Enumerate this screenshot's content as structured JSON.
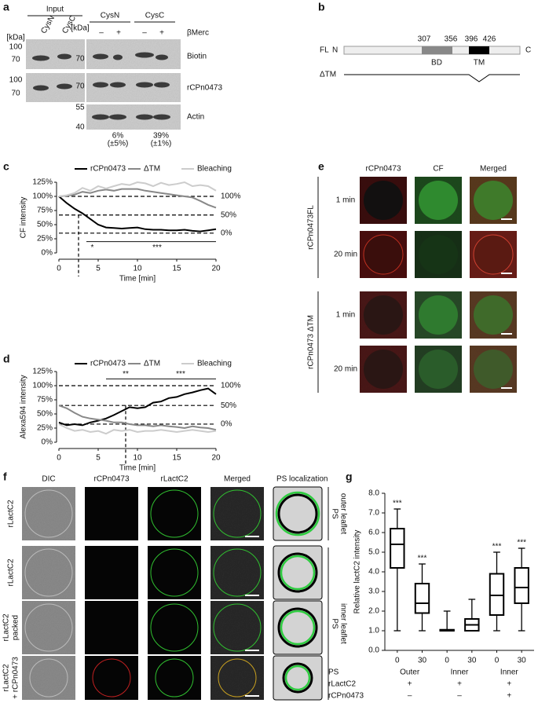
{
  "panel_labels": [
    "a",
    "b",
    "c",
    "d",
    "e",
    "f",
    "g"
  ],
  "blot": {
    "input_label": "Input",
    "lanes_input": [
      "CysN",
      "CysC"
    ],
    "groups": [
      "CysN",
      "CysC"
    ],
    "treatment": "βMerc",
    "signs": [
      "–",
      "+",
      "–",
      "+"
    ],
    "kda": [
      "[kDa]",
      "[kDa]"
    ],
    "markers_left": [
      100,
      70,
      100,
      70
    ],
    "markers_mid": [
      70,
      70,
      55,
      40
    ],
    "rows": [
      "Biotin",
      "rCPn0473",
      "Actin"
    ],
    "quantification": [
      [
        "6%",
        "(±5%)"
      ],
      [
        "39%",
        "(±1%)"
      ]
    ]
  },
  "domain_diagram": {
    "fl": "FL",
    "n": "N",
    "c": "C",
    "positions": [
      307,
      356,
      396,
      426
    ],
    "domains": [
      "BD",
      "TM"
    ],
    "dtm": "ΔTM"
  },
  "chart_data": [
    {
      "type": "line",
      "ylabel": "CF intensity",
      "xlabel": "Time [min]",
      "x": [
        0,
        1,
        2,
        3,
        4,
        5,
        6,
        7,
        8,
        9,
        10,
        11,
        12,
        13,
        14,
        15,
        16,
        17,
        18,
        19,
        20
      ],
      "series": [
        {
          "name": "rCPn0473",
          "color": "#000000",
          "values": [
            100,
            88,
            78,
            70,
            60,
            50,
            45,
            44,
            43,
            44,
            45,
            42,
            41,
            41,
            40,
            40,
            41,
            39,
            38,
            40,
            42
          ]
        },
        {
          "name": "ΔTM",
          "color": "#888888",
          "values": [
            100,
            101,
            103,
            108,
            106,
            110,
            112,
            110,
            113,
            113,
            113,
            110,
            108,
            106,
            104,
            102,
            100,
            98,
            92,
            85,
            80
          ]
        },
        {
          "name": "Bleaching",
          "color": "#cccccc",
          "values": [
            100,
            102,
            106,
            115,
            110,
            118,
            114,
            118,
            122,
            120,
            125,
            123,
            118,
            124,
            120,
            122,
            125,
            118,
            120,
            118,
            110
          ]
        }
      ],
      "xlim": [
        0,
        20
      ],
      "xticks": [
        0,
        5,
        10,
        15,
        20
      ],
      "ylim": [
        0,
        125
      ],
      "yticks": [
        {
          "value": 0,
          "label": "0%"
        },
        {
          "value": 25,
          "label": "25%"
        },
        {
          "value": 50,
          "label": "50%"
        },
        {
          "value": 75,
          "label": "75%"
        },
        {
          "value": 100,
          "label": "100%"
        },
        {
          "value": 125,
          "label": "125%"
        }
      ],
      "reference_lines": [
        {
          "value": 100,
          "label": "100%"
        },
        {
          "value": 67,
          "label": "50%"
        },
        {
          "value": 35,
          "label": "0%"
        }
      ],
      "marker_x": 2.5,
      "significance": [
        {
          "label": "*",
          "x": [
            3.5,
            5
          ],
          "y": 20
        },
        {
          "label": "***",
          "x": [
            5,
            20
          ],
          "y": 20
        }
      ]
    },
    {
      "type": "line",
      "ylabel": "Alexa594 intensity",
      "xlabel": "Time [min]",
      "x": [
        0,
        1,
        2,
        3,
        4,
        5,
        6,
        7,
        8,
        9,
        10,
        11,
        12,
        13,
        14,
        15,
        16,
        17,
        18,
        19,
        20
      ],
      "series": [
        {
          "name": "rCPn0473",
          "color": "#000000",
          "values": [
            35,
            30,
            32,
            30,
            35,
            38,
            42,
            48,
            55,
            62,
            60,
            62,
            70,
            72,
            78,
            80,
            85,
            88,
            92,
            95,
            85
          ]
        },
        {
          "name": "ΔTM",
          "color": "#888888",
          "values": [
            65,
            60,
            52,
            45,
            42,
            40,
            38,
            35,
            35,
            32,
            30,
            30,
            28,
            30,
            28,
            27,
            25,
            28,
            26,
            25,
            22
          ]
        },
        {
          "name": "Bleaching",
          "color": "#cccccc",
          "values": [
            32,
            25,
            20,
            22,
            18,
            20,
            15,
            22,
            20,
            22,
            18,
            20,
            20,
            22,
            20,
            18,
            20,
            22,
            20,
            18,
            20
          ]
        }
      ],
      "xlim": [
        0,
        20
      ],
      "xticks": [
        0,
        5,
        10,
        15,
        20
      ],
      "ylim": [
        0,
        125
      ],
      "yticks": [
        {
          "value": 0,
          "label": "0%"
        },
        {
          "value": 25,
          "label": "25%"
        },
        {
          "value": 50,
          "label": "50%"
        },
        {
          "value": 75,
          "label": "75%"
        },
        {
          "value": 100,
          "label": "100%"
        },
        {
          "value": 125,
          "label": "125%"
        }
      ],
      "reference_lines": [
        {
          "value": 100,
          "label": "100%"
        },
        {
          "value": 65,
          "label": "50%"
        },
        {
          "value": 32,
          "label": "0%"
        }
      ],
      "marker_x": 8.5,
      "significance": [
        {
          "label": "**",
          "x": [
            6,
            11
          ],
          "y": 112
        },
        {
          "label": "***",
          "x": [
            11,
            20
          ],
          "y": 112
        }
      ]
    },
    {
      "type": "box",
      "ylabel": "Relative lactC2 intensity",
      "categories": [
        "0",
        "30",
        "0",
        "30",
        "0",
        "30"
      ],
      "boxes": [
        {
          "min": 1.0,
          "q1": 4.2,
          "median": 5.4,
          "q3": 6.2,
          "max": 7.2
        },
        {
          "min": 1.0,
          "q1": 1.9,
          "median": 2.4,
          "q3": 3.4,
          "max": 4.4
        },
        {
          "min": 1.0,
          "q1": 1.0,
          "median": 1.0,
          "q3": 1.05,
          "max": 2.0
        },
        {
          "min": 1.0,
          "q1": 1.0,
          "median": 1.3,
          "q3": 1.6,
          "max": 2.6
        },
        {
          "min": 1.0,
          "q1": 1.8,
          "median": 2.8,
          "q3": 3.9,
          "max": 5.0
        },
        {
          "min": 1.0,
          "q1": 2.4,
          "median": 3.2,
          "q3": 4.2,
          "max": 5.2
        }
      ],
      "annotations": [
        "***",
        "***",
        null,
        null,
        "***",
        "***"
      ],
      "ylim": [
        0,
        8
      ],
      "yticks": [
        {
          "value": 0,
          "label": "0.0"
        },
        {
          "value": 1,
          "label": "1.0"
        },
        {
          "value": 2,
          "label": "2.0"
        },
        {
          "value": 3,
          "label": "3.0"
        },
        {
          "value": 4,
          "label": "4.0"
        },
        {
          "value": 5,
          "label": "5.0"
        },
        {
          "value": 6,
          "label": "6.0"
        },
        {
          "value": 7,
          "label": "7.0"
        },
        {
          "value": 8,
          "label": "8.0"
        }
      ],
      "condition_labels": [
        "PS",
        "rLactC2",
        "rCPn0473"
      ],
      "condition_groups": [
        [
          "Outer",
          "+",
          "–"
        ],
        [
          "Inner",
          "+",
          "–"
        ],
        [
          "Inner",
          "+",
          "+"
        ]
      ]
    }
  ],
  "microscopy_e": {
    "columns": [
      "rCPn0473",
      "CF",
      "Merged"
    ],
    "rows": [
      "1 min",
      "20 min",
      "1 min",
      "20 min"
    ],
    "groups": [
      "rCPn0473FL",
      "rCPn0473 ΔTM"
    ]
  },
  "microscopy_f": {
    "columns": [
      "DIC",
      "rCPn0473",
      "rLactC2",
      "Merged"
    ],
    "ps_header": [
      "PS",
      "localization"
    ],
    "rows": [
      [
        "rLactC2"
      ],
      [
        "rLactC2"
      ],
      [
        "rLactC2",
        "packed"
      ],
      [
        "rLactC2",
        "+ rCPn0473"
      ]
    ],
    "side_labels": [
      [
        "PS",
        "outer leaflet"
      ],
      [
        "PS",
        "inner leaflet"
      ]
    ]
  }
}
